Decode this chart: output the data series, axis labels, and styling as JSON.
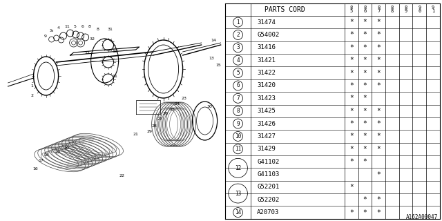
{
  "diagram_label": "A162A00047",
  "parts_cord_header": "PARTS CORD",
  "col_headers": [
    "85",
    "86",
    "87",
    "88",
    "89",
    "90",
    "91"
  ],
  "rows": [
    {
      "ref": "1",
      "parts": [
        "31474"
      ],
      "stars": [
        [
          1,
          1,
          1,
          0,
          0,
          0,
          0
        ]
      ]
    },
    {
      "ref": "2",
      "parts": [
        "G54002"
      ],
      "stars": [
        [
          1,
          1,
          1,
          0,
          0,
          0,
          0
        ]
      ]
    },
    {
      "ref": "3",
      "parts": [
        "31416"
      ],
      "stars": [
        [
          1,
          1,
          1,
          0,
          0,
          0,
          0
        ]
      ]
    },
    {
      "ref": "4",
      "parts": [
        "31421"
      ],
      "stars": [
        [
          1,
          1,
          1,
          0,
          0,
          0,
          0
        ]
      ]
    },
    {
      "ref": "5",
      "parts": [
        "31422"
      ],
      "stars": [
        [
          1,
          1,
          1,
          0,
          0,
          0,
          0
        ]
      ]
    },
    {
      "ref": "6",
      "parts": [
        "31420"
      ],
      "stars": [
        [
          1,
          1,
          1,
          0,
          0,
          0,
          0
        ]
      ]
    },
    {
      "ref": "7",
      "parts": [
        "31423"
      ],
      "stars": [
        [
          1,
          1,
          0,
          0,
          0,
          0,
          0
        ]
      ]
    },
    {
      "ref": "8",
      "parts": [
        "31425"
      ],
      "stars": [
        [
          1,
          1,
          1,
          0,
          0,
          0,
          0
        ]
      ]
    },
    {
      "ref": "9",
      "parts": [
        "31426"
      ],
      "stars": [
        [
          1,
          1,
          1,
          0,
          0,
          0,
          0
        ]
      ]
    },
    {
      "ref": "10",
      "parts": [
        "31427"
      ],
      "stars": [
        [
          1,
          1,
          1,
          0,
          0,
          0,
          0
        ]
      ]
    },
    {
      "ref": "11",
      "parts": [
        "31429"
      ],
      "stars": [
        [
          1,
          1,
          1,
          0,
          0,
          0,
          0
        ]
      ]
    },
    {
      "ref": "12",
      "parts": [
        "G41102",
        "G41103"
      ],
      "stars": [
        [
          1,
          1,
          0,
          0,
          0,
          0,
          0
        ],
        [
          0,
          0,
          1,
          0,
          0,
          0,
          0
        ]
      ]
    },
    {
      "ref": "13",
      "parts": [
        "G52201",
        "G52202"
      ],
      "stars": [
        [
          1,
          0,
          0,
          0,
          0,
          0,
          0
        ],
        [
          0,
          1,
          1,
          0,
          0,
          0,
          0
        ]
      ]
    },
    {
      "ref": "14",
      "parts": [
        "A20703"
      ],
      "stars": [
        [
          1,
          1,
          1,
          0,
          0,
          0,
          0
        ]
      ]
    }
  ],
  "bg_color": "#ffffff",
  "text_color": "#000000",
  "font_size": 6.5,
  "header_font_size": 7
}
